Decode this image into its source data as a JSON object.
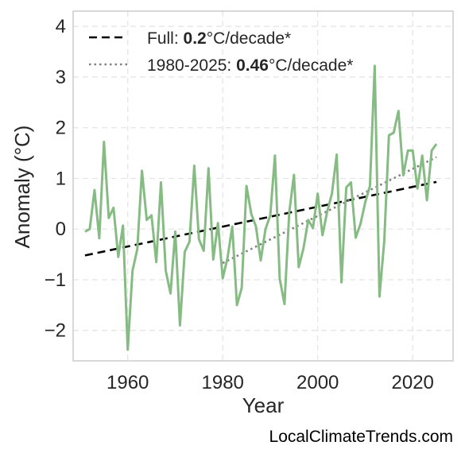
{
  "chart_data": {
    "type": "line",
    "xlabel": "Year",
    "ylabel": "Anomaly (°C)",
    "xlim": [
      1948.5,
      2028.5
    ],
    "ylim": [
      -2.6,
      4.3
    ],
    "x_ticks": [
      1960,
      1980,
      2000,
      2020
    ],
    "y_ticks": [
      -2,
      -1,
      0,
      1,
      2,
      3,
      4
    ],
    "x_tick_labels": [
      "1960",
      "1980",
      "2000",
      "2020"
    ],
    "y_tick_labels": [
      "−2",
      "−1",
      "0",
      "1",
      "2",
      "3",
      "4"
    ],
    "grid": true,
    "legend_position": "top-left",
    "colors": {
      "anomaly": "#86bb84",
      "full_trend": "#000000",
      "recent_trend": "#808080"
    },
    "x": [
      1951,
      1952,
      1953,
      1954,
      1955,
      1956,
      1957,
      1958,
      1959,
      1960,
      1961,
      1962,
      1963,
      1964,
      1965,
      1966,
      1967,
      1968,
      1969,
      1970,
      1971,
      1972,
      1973,
      1974,
      1975,
      1976,
      1977,
      1978,
      1979,
      1980,
      1981,
      1982,
      1983,
      1984,
      1985,
      1986,
      1987,
      1988,
      1989,
      1990,
      1991,
      1992,
      1993,
      1994,
      1995,
      1996,
      1997,
      1998,
      1999,
      2000,
      2001,
      2002,
      2003,
      2004,
      2005,
      2006,
      2007,
      2008,
      2009,
      2010,
      2011,
      2012,
      2013,
      2014,
      2015,
      2016,
      2017,
      2018,
      2019,
      2020,
      2021,
      2022,
      2023,
      2024,
      2025
    ],
    "series": [
      {
        "values": [
          -0.05,
          0.0,
          0.77,
          -0.18,
          1.72,
          0.22,
          0.42,
          -0.55,
          0.07,
          -2.38,
          -0.82,
          -0.4,
          1.15,
          0.18,
          0.27,
          -0.65,
          0.92,
          -0.82,
          -1.27,
          -0.05,
          -1.9,
          -0.45,
          -0.25,
          1.25,
          -0.2,
          -0.43,
          1.2,
          -0.6,
          0.12,
          -0.97,
          -0.57,
          0.05,
          -1.5,
          -1.16,
          0.85,
          0.3,
          0.05,
          -0.62,
          0.0,
          0.27,
          1.45,
          -0.98,
          -1.48,
          0.33,
          1.07,
          -0.75,
          -0.38,
          0.18,
          0.02,
          0.7,
          -0.12,
          0.35,
          0.7,
          1.47,
          -1.05,
          0.82,
          0.92,
          -0.17,
          0.1,
          0.53,
          0.85,
          3.22,
          -1.33,
          -0.24,
          1.85,
          1.9,
          2.33,
          1.06,
          1.55,
          1.55,
          0.8,
          1.45,
          0.57,
          1.55,
          1.68
        ]
      }
    ],
    "trends": [
      {
        "style": "dashed",
        "x": [
          1951,
          2025
        ],
        "y": [
          -0.52,
          0.93
        ]
      },
      {
        "style": "dotted",
        "x": [
          1980,
          2025
        ],
        "y": [
          -0.67,
          1.42
        ]
      }
    ]
  },
  "legend": {
    "full": {
      "prefix": "Full: ",
      "value": "0.2",
      "suffix": "°C/decade*"
    },
    "recent": {
      "prefix": "1980-2025: ",
      "value": "0.46",
      "suffix": "°C/decade*"
    }
  },
  "watermark": "LocalClimateTrends.com"
}
